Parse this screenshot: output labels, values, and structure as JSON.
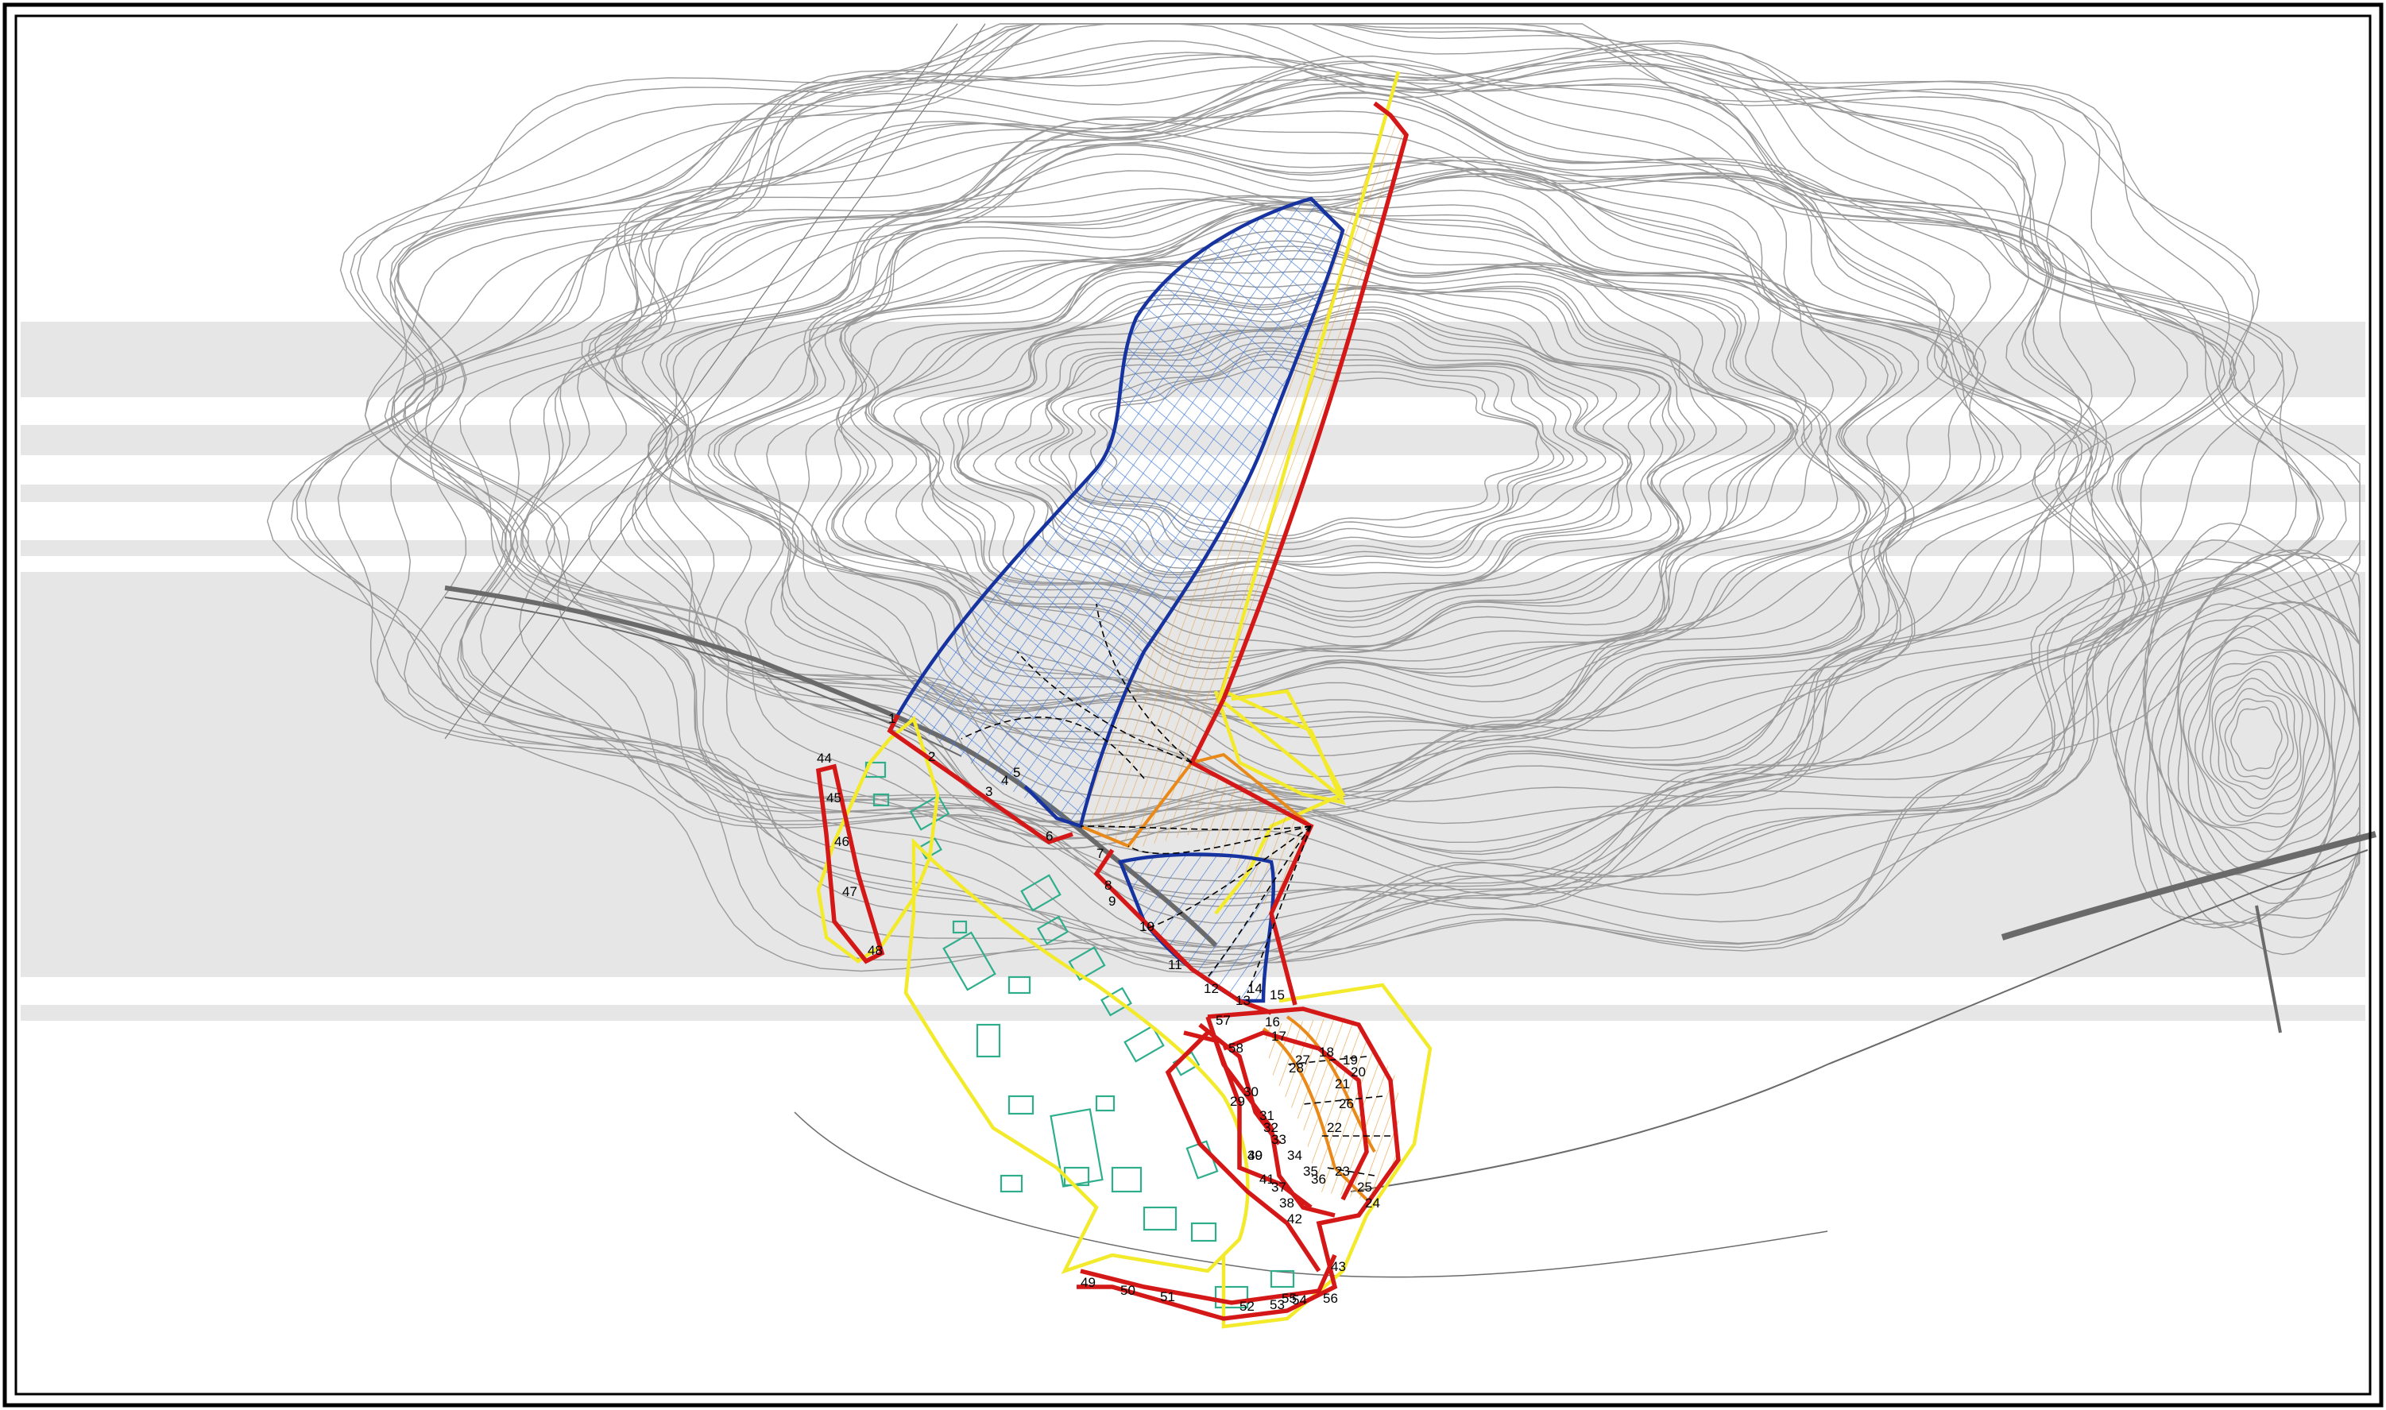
{
  "map": {
    "colors": {
      "contour": "#9a9a9a",
      "band": "#e6e6e6",
      "frame": "#000000",
      "zone_yellow": "#f2ea2a",
      "zone_red": "#d41717",
      "zone_blue": "#1633a0",
      "zone_orange": "#e8891a",
      "hatch_blue": "#3f78d8",
      "hatch_orange": "#e8a44a",
      "buildings": "#2fae8c",
      "labels": "#000000"
    },
    "section_labels": [
      "1",
      "2",
      "3",
      "4",
      "5",
      "6",
      "7",
      "8",
      "9",
      "10",
      "11",
      "12",
      "13",
      "14",
      "15",
      "16",
      "17",
      "18",
      "19",
      "20",
      "21",
      "22",
      "23",
      "24",
      "25",
      "26",
      "27",
      "28",
      "29",
      "30",
      "31",
      "32",
      "33",
      "34",
      "35",
      "36",
      "37",
      "38",
      "39",
      "40",
      "41",
      "42",
      "43",
      "44",
      "45",
      "46",
      "47",
      "48",
      "49",
      "50",
      "51",
      "52",
      "53",
      "54",
      "55",
      "56",
      "57",
      "58"
    ]
  }
}
